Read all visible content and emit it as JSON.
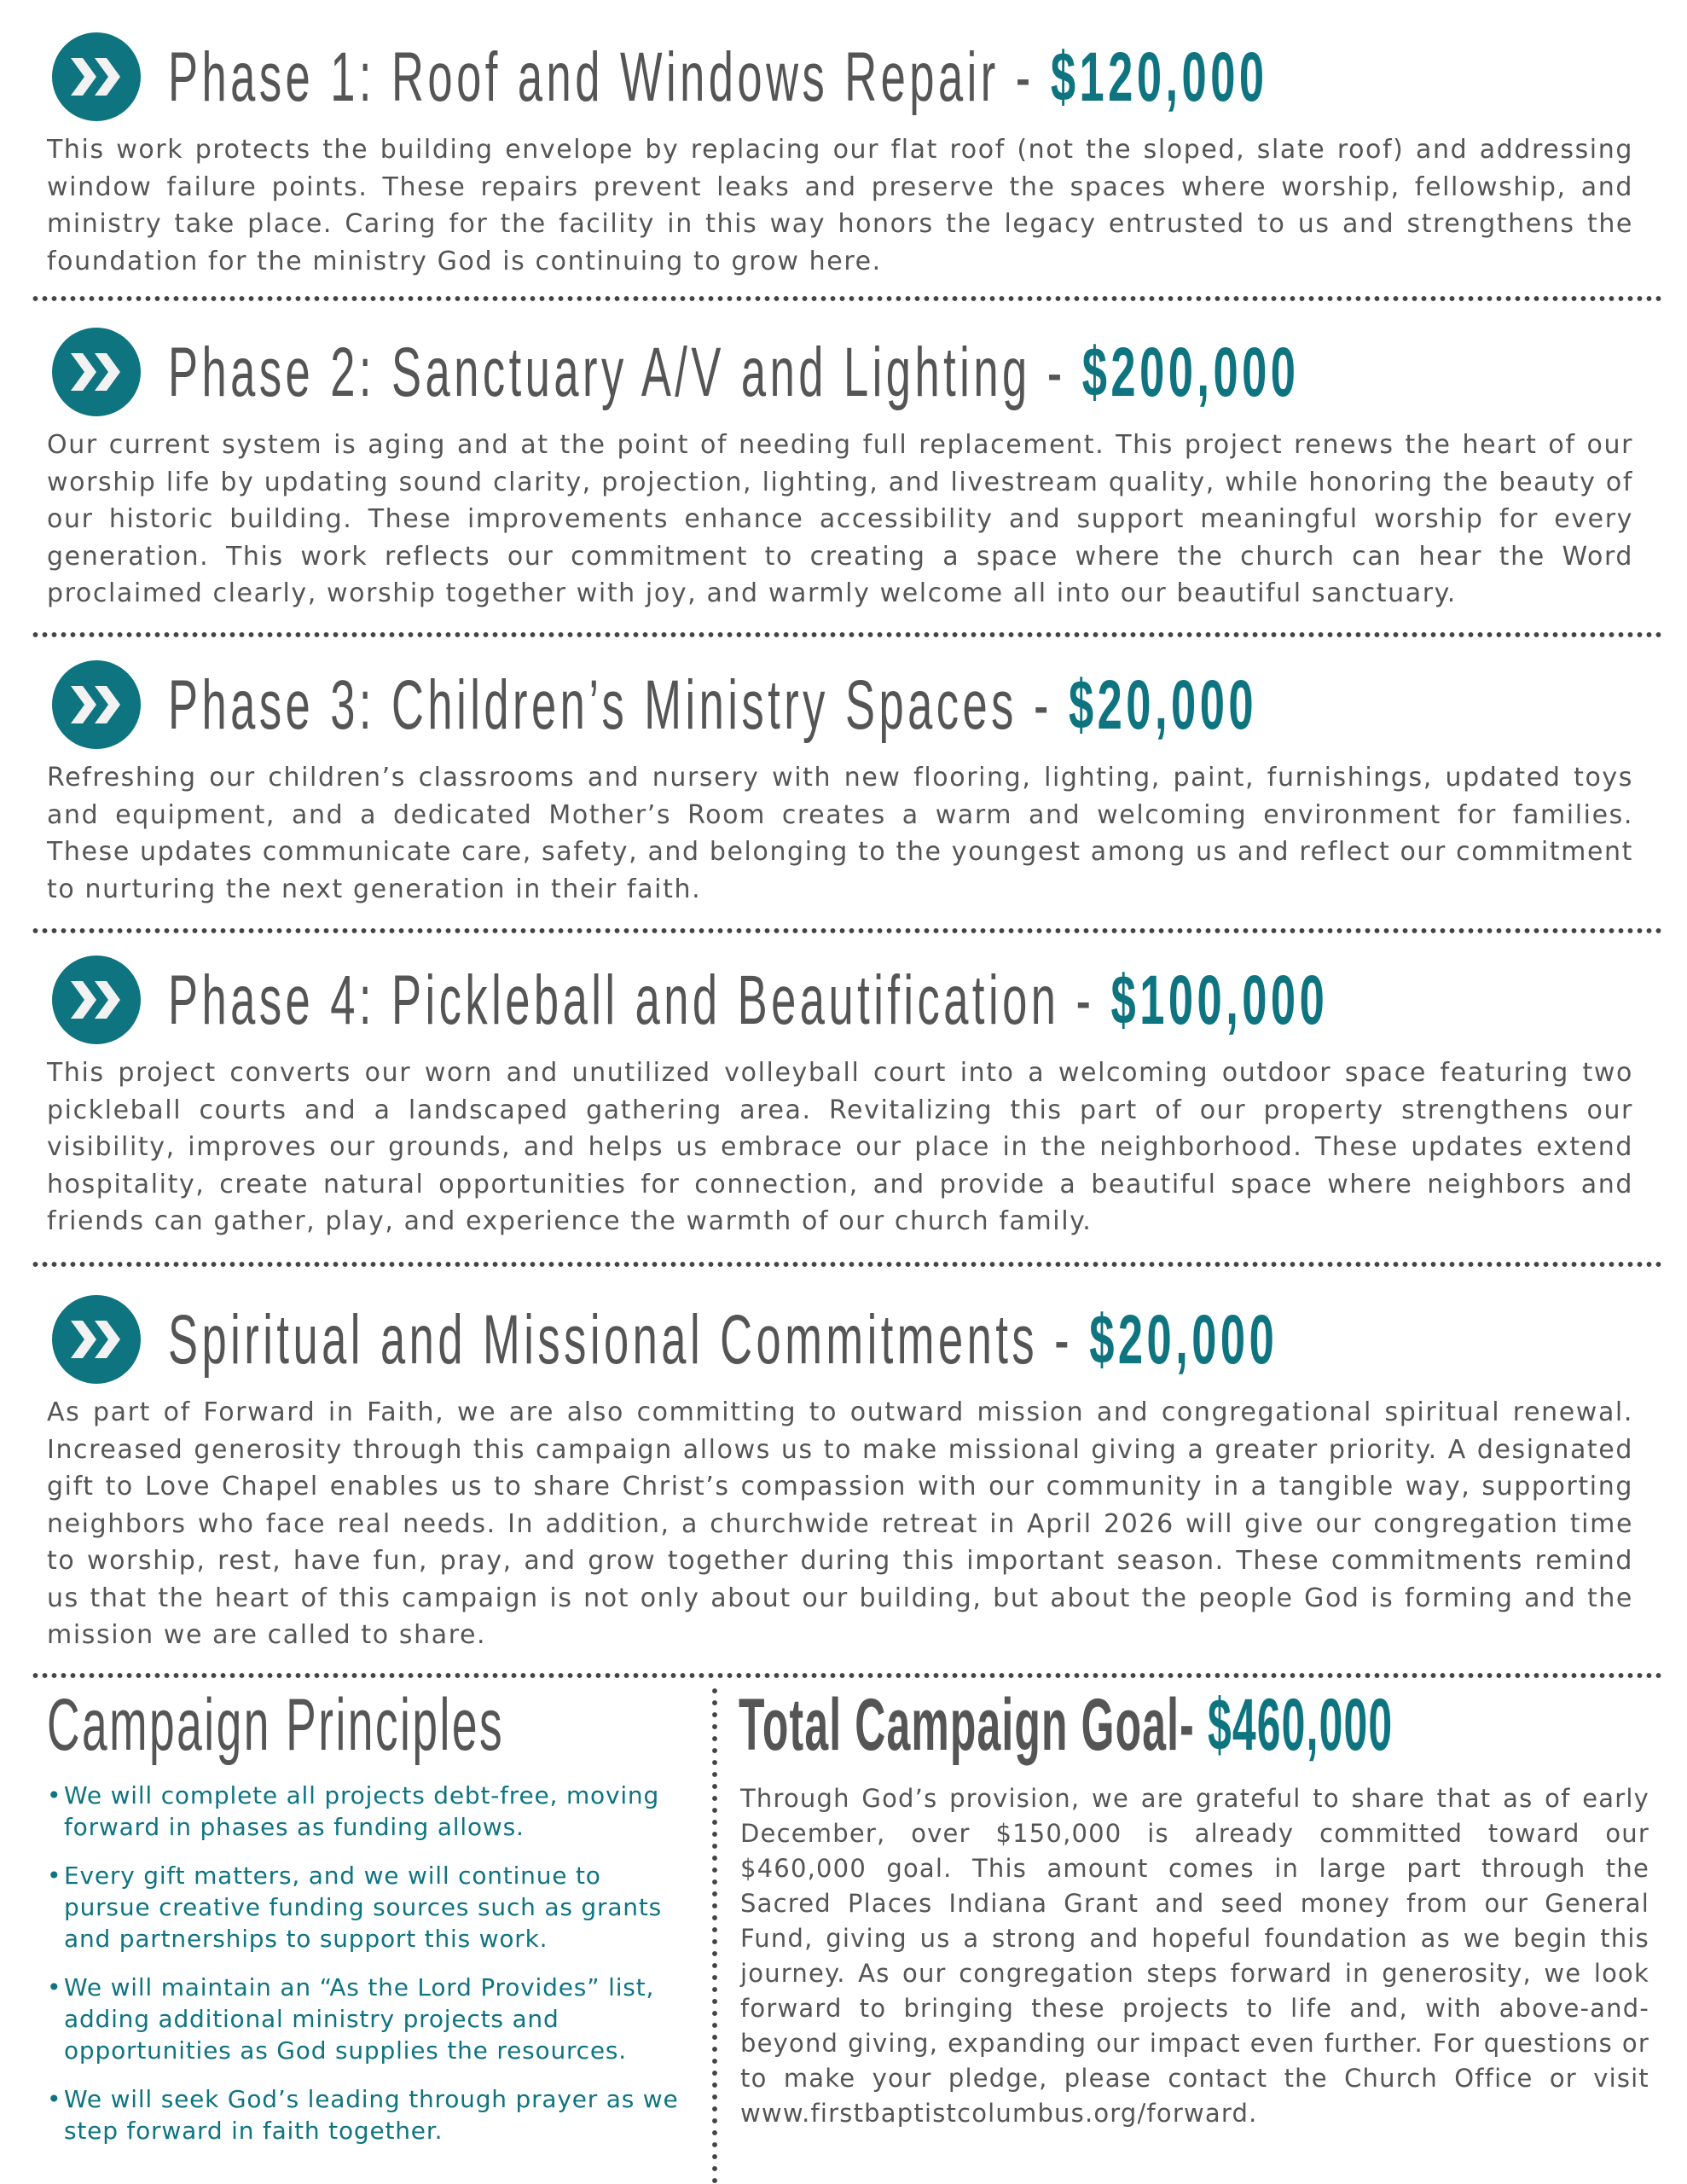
{
  "colors": {
    "accent": "#0e7480",
    "text": "#555555"
  },
  "icon": "double-chevron-right-circle-icon",
  "phases": [
    {
      "title": "Phase 1: Roof and Windows Repair - ",
      "amount": "$120,000",
      "body": "This work protects the building envelope by replacing our flat roof (not the sloped, slate roof) and addressing window failure points. These repairs prevent leaks and preserve the spaces where worship, fellowship, and ministry take place. Caring for the facility in this way honors the legacy entrusted to us and strengthens the foundation for the ministry God is continuing to grow here."
    },
    {
      "title": "Phase 2: Sanctuary A/V and Lighting - ",
      "amount": "$200,000",
      "body": "Our current system is aging and at the point of needing full replacement. This project renews the heart of our worship life by updating sound clarity, projection, lighting, and livestream quality, while honoring the beauty of our historic building. These improvements enhance accessibility and support meaningful worship for every generation. This work reflects our commitment to creating a space where the church can hear the Word proclaimed clearly, worship together with joy, and warmly welcome all into our beautiful sanctuary."
    },
    {
      "title": "Phase 3: Children’s Ministry Spaces - ",
      "amount": "$20,000",
      "body": "Refreshing our children’s classrooms and nursery with new flooring, lighting, paint, furnishings, updated toys and equipment, and a dedicated Mother’s Room creates a warm and welcoming environment for families. These updates communicate care, safety, and belonging to the youngest among us and reflect our commitment to nurturing the next generation in their faith."
    },
    {
      "title": "Phase 4: Pickleball and Beautification - ",
      "amount": "$100,000",
      "body": "This project converts our worn and unutilized volleyball court into a welcoming outdoor space featuring two pickleball courts and a landscaped gathering area. Revitalizing this part of our property strengthens our visibility, improves our grounds, and helps us embrace our place in the neighborhood. These updates extend hospitality, create natural opportunities for connection, and provide a beautiful space where neighbors and friends can gather, play, and experience the warmth of our church family."
    },
    {
      "title": "Spiritual and Missional Commitments - ",
      "amount": "$20,000",
      "body": "As part of Forward in Faith, we are also committing to outward mission and congregational spiritual renewal. Increased generosity through this campaign allows us to make missional giving a greater priority. A designated gift to Love Chapel enables us to share Christ’s compassion with our community in a tangible way, supporting neighbors who face real needs. In addition, a churchwide retreat in April 2026 will give our congregation time to worship, rest, have fun, pray, and grow together during this important season. These commitments remind us that the heart of this campaign is not only about our building, but about the people God is forming and the mission we are called to share."
    }
  ],
  "principles": {
    "title": "Campaign Principles",
    "bullet": "•",
    "items": [
      "We will complete all projects debt-free, moving forward in phases as funding allows.",
      "Every gift matters, and we will continue to pursue creative funding sources such as grants and partnerships to support this work.",
      "We will maintain an “As the Lord Provides” list, adding additional ministry projects and opportunities as God supplies the resources.",
      "We will seek God’s leading through prayer as we step forward in faith together."
    ]
  },
  "goal": {
    "title": "Total Campaign Goal- ",
    "amount": "$460,000",
    "body": "Through God’s provision, we are grateful to share that as of early December, over $150,000 is already committed toward our $460,000 goal. This amount comes in large part through the Sacred Places Indiana Grant and seed money from our General Fund, giving us a strong and hopeful foundation as we begin this journey. As our congregation steps forward in generosity, we look forward to bringing these projects to life and, with above-and-beyond giving, expanding our impact even further. For questions or to make your pledge, please contact the Church Office or visit www.firstbaptistcolumbus.org/forward."
  }
}
